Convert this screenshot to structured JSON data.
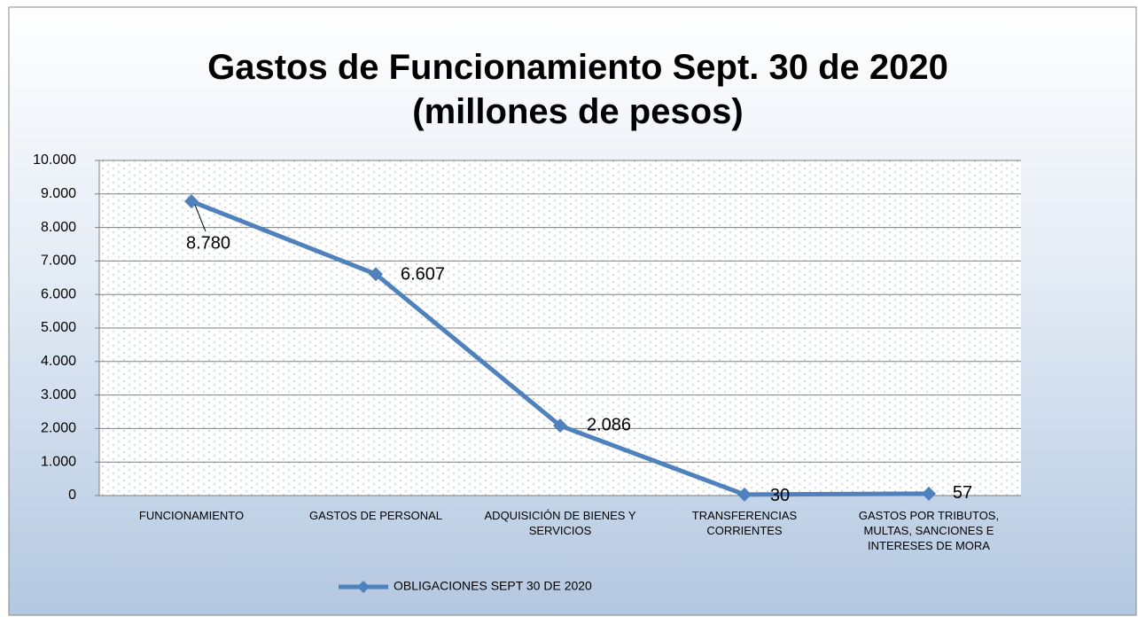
{
  "chart_data": {
    "type": "line",
    "title": "Gastos de Funcionamiento Sept. 30 de 2020 (millones de pesos)",
    "categories": [
      "FUNCIONAMIENTO",
      "GASTOS DE PERSONAL",
      "ADQUISICIÓN DE BIENES Y SERVICIOS",
      "TRANSFERENCIAS CORRIENTES",
      "GASTOS POR TRIBUTOS, MULTAS, SANCIONES E INTERESES DE MORA"
    ],
    "series": [
      {
        "name": "OBLIGACIONES SEPT 30 DE 2020",
        "color": "#4f81bd",
        "values": [
          8780,
          6607,
          2086,
          30,
          57
        ],
        "value_labels": [
          "8.780",
          "6.607",
          "2.086",
          "30",
          "57"
        ]
      }
    ],
    "ylim": [
      0,
      10000
    ],
    "yticks": [
      0,
      {
        "value": 1000,
        "label": "1.000"
      },
      {
        "value": 2000,
        "label": "2.000"
      },
      {
        "value": 3000,
        "label": "3.000"
      },
      {
        "value": 4000,
        "label": "4.000"
      },
      {
        "value": 5000,
        "label": "5.000"
      },
      {
        "value": 6000,
        "label": "6.000"
      },
      {
        "value": 7000,
        "label": "7.000"
      },
      {
        "value": 8000,
        "label": "8.000"
      },
      {
        "value": 9000,
        "label": "9.000"
      },
      {
        "value": 10000,
        "label": "10.000"
      }
    ],
    "grid": true,
    "legend": "bottom"
  }
}
